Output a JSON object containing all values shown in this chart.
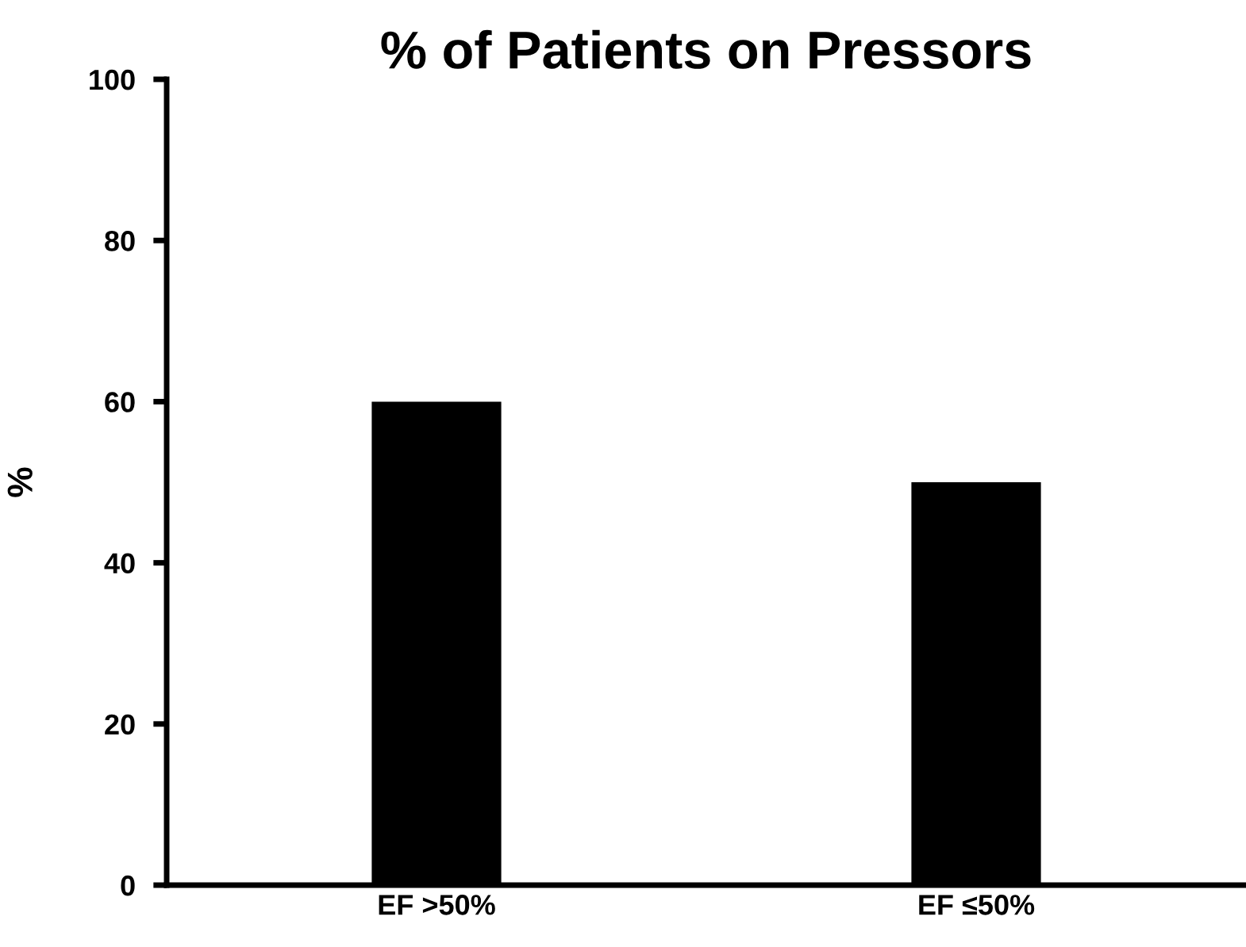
{
  "chart_data": {
    "type": "bar",
    "title": "% of Patients on Pressors",
    "ylabel": "%",
    "categories": [
      "EF >50%",
      "EF ≤50%"
    ],
    "series": [
      {
        "color": "#000000",
        "values": [
          60,
          50
        ]
      }
    ],
    "ylim": [
      0,
      100
    ],
    "yticks": [
      0,
      20,
      40,
      60,
      80,
      100
    ],
    "grid": false,
    "legend": false
  }
}
